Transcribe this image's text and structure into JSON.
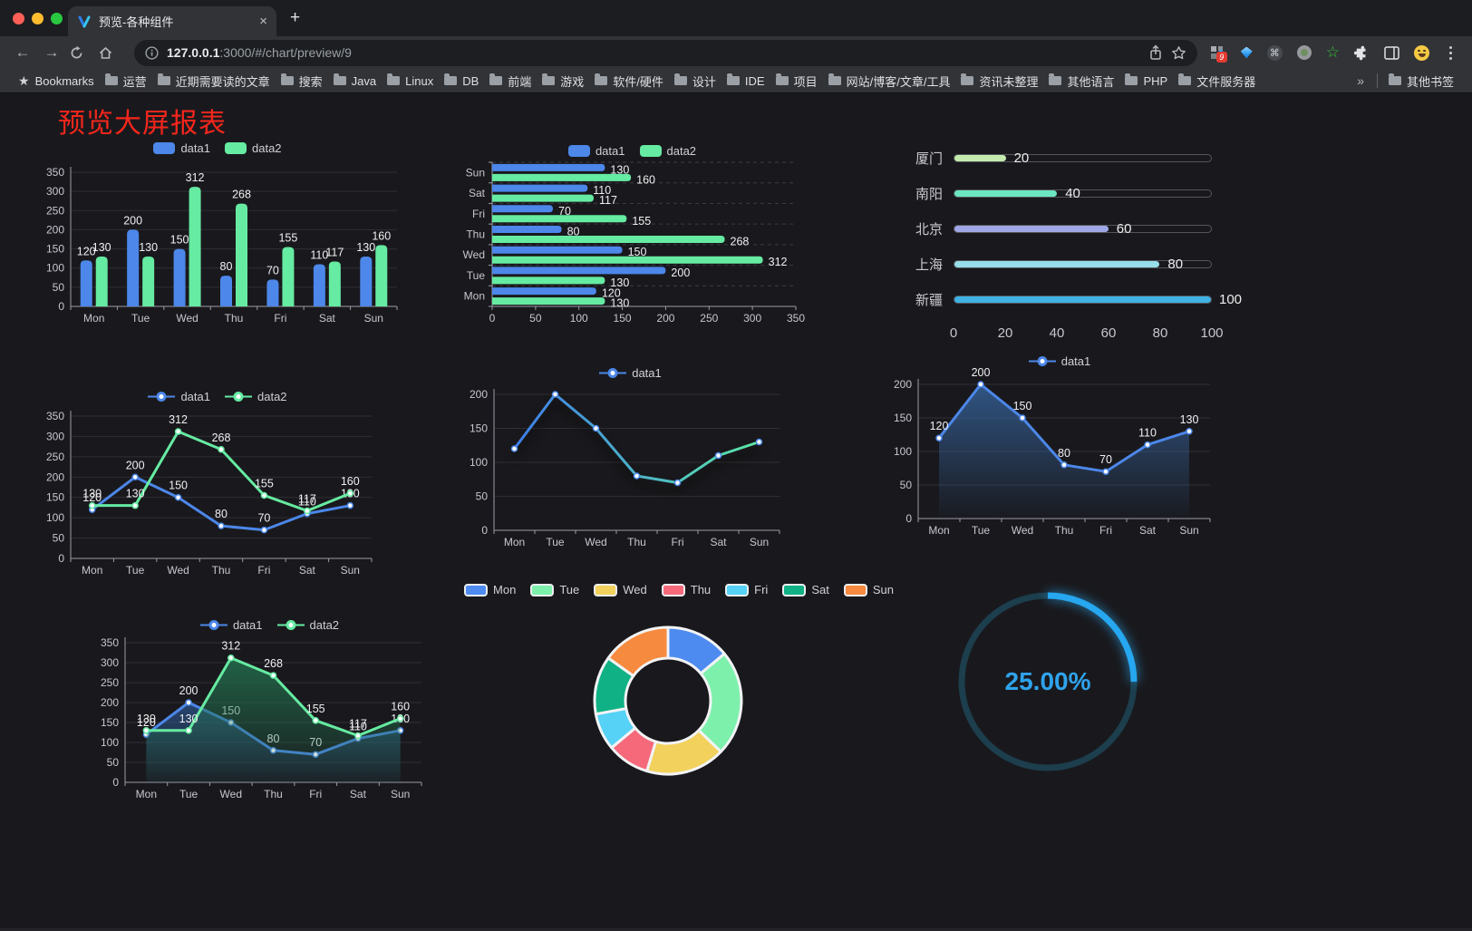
{
  "browser": {
    "tab": {
      "title": "预览-各种组件"
    },
    "address": {
      "host": "127.0.0.1",
      "path": ":3000/#/chart/preview/9"
    },
    "glyphs": {
      "back": "←",
      "forward": "→",
      "close": "×",
      "newtab": "+",
      "cmd": "⌘",
      "xdebug_star": "☆",
      "bookmarks_star": "★",
      "overflow": "»"
    },
    "extensions_badge": "9",
    "bookmarks_bar": {
      "label": "Bookmarks",
      "folders": [
        "运营",
        "近期需要读的文章",
        "搜索",
        "Java",
        "Linux",
        "DB",
        "前端",
        "游戏",
        "软件/硬件",
        "设计",
        "IDE",
        "项目",
        "网站/博客/文章/工具",
        "资讯未整理",
        "其他语言",
        "PHP",
        "文件服务器"
      ],
      "other": "其他书签"
    }
  },
  "page": {
    "title": "预览大屏报表"
  },
  "chart_data": [
    {
      "id": "bar-vertical",
      "type": "bar",
      "categories": [
        "Mon",
        "Tue",
        "Wed",
        "Thu",
        "Fri",
        "Sat",
        "Sun"
      ],
      "series": [
        {
          "name": "data1",
          "color": "#4C87E9",
          "values": [
            120,
            200,
            150,
            80,
            70,
            110,
            130
          ]
        },
        {
          "name": "data2",
          "color": "#66EBA2",
          "values": [
            130,
            130,
            312,
            268,
            155,
            117,
            160
          ]
        }
      ],
      "ylim": [
        0,
        350
      ],
      "ytick": 50,
      "legend": true
    },
    {
      "id": "bar-horizontal",
      "type": "hbar",
      "categories": [
        "Mon",
        "Tue",
        "Wed",
        "Thu",
        "Fri",
        "Sat",
        "Sun"
      ],
      "series": [
        {
          "name": "data1",
          "color": "#4C87E9",
          "values": [
            120,
            200,
            150,
            80,
            70,
            110,
            130
          ]
        },
        {
          "name": "data2",
          "color": "#66EBA2",
          "values": [
            130,
            130,
            312,
            268,
            155,
            117,
            160
          ]
        }
      ],
      "xlim": [
        0,
        350
      ],
      "xtick": 50,
      "legend": true
    },
    {
      "id": "progress-bars",
      "type": "progress",
      "categories": [
        "厦门",
        "南阳",
        "北京",
        "上海",
        "新疆"
      ],
      "values": [
        20,
        40,
        60,
        80,
        100
      ],
      "colors": [
        "#C4EBAD",
        "#6BE6C1",
        "#A0A7E6",
        "#96DEE8",
        "#3FB1E3"
      ],
      "xlim": [
        0,
        100
      ],
      "xticks": [
        0,
        20,
        40,
        60,
        80,
        100
      ]
    },
    {
      "id": "line-two-series",
      "type": "line",
      "categories": [
        "Mon",
        "Tue",
        "Wed",
        "Thu",
        "Fri",
        "Sat",
        "Sun"
      ],
      "series": [
        {
          "name": "data1",
          "color": "#4C87E9",
          "values": [
            120,
            200,
            150,
            80,
            70,
            110,
            130
          ]
        },
        {
          "name": "data2",
          "color": "#66EBA2",
          "values": [
            130,
            130,
            312,
            268,
            155,
            117,
            160
          ]
        }
      ],
      "ylim": [
        0,
        350
      ],
      "ytick": 50,
      "legend": true,
      "labels": true
    },
    {
      "id": "line-gradient",
      "type": "line",
      "categories": [
        "Mon",
        "Tue",
        "Wed",
        "Thu",
        "Fri",
        "Sat",
        "Sun"
      ],
      "series": [
        {
          "name": "data1",
          "color": "#4C87E9",
          "gradient": [
            "#3D7EEA",
            "#5CE6A6"
          ],
          "values": [
            120,
            200,
            150,
            80,
            70,
            110,
            130
          ]
        }
      ],
      "ylim": [
        0,
        200
      ],
      "ytick": 50,
      "legend": true,
      "labels": false,
      "shadow": true
    },
    {
      "id": "area-single",
      "type": "line",
      "categories": [
        "Mon",
        "Tue",
        "Wed",
        "Thu",
        "Fri",
        "Sat",
        "Sun"
      ],
      "series": [
        {
          "name": "data1",
          "color": "#4C87E9",
          "area": [
            "rgba(58,110,175,0.70)",
            "rgba(58,110,175,0.02)"
          ],
          "values": [
            120,
            200,
            150,
            80,
            70,
            110,
            130
          ]
        }
      ],
      "ylim": [
        0,
        200
      ],
      "ytick": 50,
      "legend": true,
      "labels": true
    },
    {
      "id": "line-area-two-series",
      "type": "line",
      "categories": [
        "Mon",
        "Tue",
        "Wed",
        "Thu",
        "Fri",
        "Sat",
        "Sun"
      ],
      "series": [
        {
          "name": "data1",
          "color": "#4C87E9",
          "area": [
            "rgba(45,85,140,0.75)",
            "rgba(45,85,140,0.06)"
          ],
          "values": [
            120,
            200,
            150,
            80,
            70,
            110,
            130
          ]
        },
        {
          "name": "data2",
          "color": "#66EBA2",
          "area": [
            "rgba(35,115,80,0.80)",
            "rgba(35,115,80,0.06)"
          ],
          "values": [
            130,
            130,
            312,
            268,
            155,
            117,
            160
          ]
        }
      ],
      "ylim": [
        0,
        350
      ],
      "ytick": 50,
      "legend": true,
      "labels": true
    },
    {
      "id": "donut",
      "type": "donut",
      "categories": [
        "Mon",
        "Tue",
        "Wed",
        "Thu",
        "Fri",
        "Sat",
        "Sun"
      ],
      "values": [
        120,
        200,
        150,
        80,
        70,
        110,
        130
      ],
      "colors": [
        "#4E8BF0",
        "#7DF0AC",
        "#F2D15C",
        "#F5697B",
        "#55D2F5",
        "#10B184",
        "#F68A3E"
      ],
      "legend": true
    },
    {
      "id": "gauge-ring",
      "type": "gauge",
      "value": 25,
      "label": "25.00%",
      "color": "#26A7EF",
      "track": "#1C3E4D"
    }
  ]
}
